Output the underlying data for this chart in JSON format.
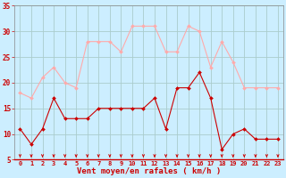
{
  "hours": [
    0,
    1,
    2,
    3,
    4,
    5,
    6,
    7,
    8,
    9,
    10,
    11,
    12,
    13,
    14,
    15,
    16,
    17,
    18,
    19,
    20,
    21,
    22,
    23
  ],
  "vent_moyen": [
    11,
    8,
    11,
    17,
    13,
    13,
    13,
    15,
    15,
    15,
    15,
    15,
    17,
    11,
    19,
    19,
    22,
    17,
    7,
    10,
    11,
    9,
    9,
    9
  ],
  "rafales": [
    18,
    17,
    21,
    23,
    20,
    19,
    28,
    28,
    28,
    26,
    31,
    31,
    31,
    26,
    26,
    31,
    30,
    23,
    28,
    24,
    19,
    19,
    19,
    19
  ],
  "xlabel": "Vent moyen/en rafales ( km/h )",
  "ylim": [
    5,
    35
  ],
  "yticks": [
    5,
    10,
    15,
    20,
    25,
    30,
    35
  ],
  "bg_color": "#cceeff",
  "grid_color": "#aacccc",
  "line_moyen_color": "#cc0000",
  "line_rafales_color": "#ffaaaa",
  "arrow_color": "#cc0000",
  "xlabel_color": "#cc0000",
  "tick_color": "#cc0000",
  "spine_color": "#888888"
}
